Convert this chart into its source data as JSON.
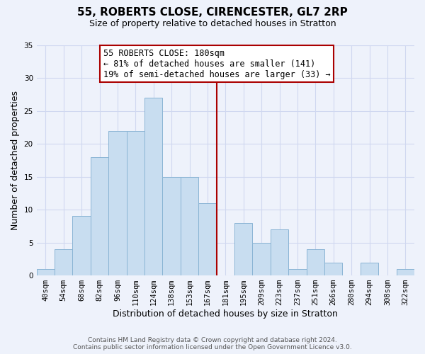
{
  "title": "55, ROBERTS CLOSE, CIRENCESTER, GL7 2RP",
  "subtitle": "Size of property relative to detached houses in Stratton",
  "xlabel": "Distribution of detached houses by size in Stratton",
  "ylabel": "Number of detached properties",
  "bin_labels": [
    "40sqm",
    "54sqm",
    "68sqm",
    "82sqm",
    "96sqm",
    "110sqm",
    "124sqm",
    "138sqm",
    "153sqm",
    "167sqm",
    "181sqm",
    "195sqm",
    "209sqm",
    "223sqm",
    "237sqm",
    "251sqm",
    "266sqm",
    "280sqm",
    "294sqm",
    "308sqm",
    "322sqm"
  ],
  "bar_values": [
    1,
    4,
    9,
    18,
    22,
    22,
    27,
    15,
    15,
    11,
    0,
    8,
    5,
    7,
    1,
    4,
    2,
    0,
    2,
    0,
    1
  ],
  "bar_color": "#c8ddf0",
  "bar_edge_color": "#8ab4d4",
  "ylim": [
    0,
    35
  ],
  "yticks": [
    0,
    5,
    10,
    15,
    20,
    25,
    30,
    35
  ],
  "vline_index": 10,
  "annotation_title": "55 ROBERTS CLOSE: 180sqm",
  "annotation_line1": "← 81% of detached houses are smaller (141)",
  "annotation_line2": "19% of semi-detached houses are larger (33) →",
  "footer_line1": "Contains HM Land Registry data © Crown copyright and database right 2024.",
  "footer_line2": "Contains public sector information licensed under the Open Government Licence v3.0.",
  "background_color": "#eef2fb",
  "grid_color": "#d0d8f0",
  "annotation_box_color": "#ffffff",
  "annotation_border_color": "#aa0000",
  "vline_color": "#aa0000",
  "title_fontsize": 11,
  "subtitle_fontsize": 9,
  "tick_fontsize": 7.5,
  "ylabel_fontsize": 9,
  "xlabel_fontsize": 9,
  "annotation_fontsize": 8.5,
  "footer_fontsize": 6.5
}
